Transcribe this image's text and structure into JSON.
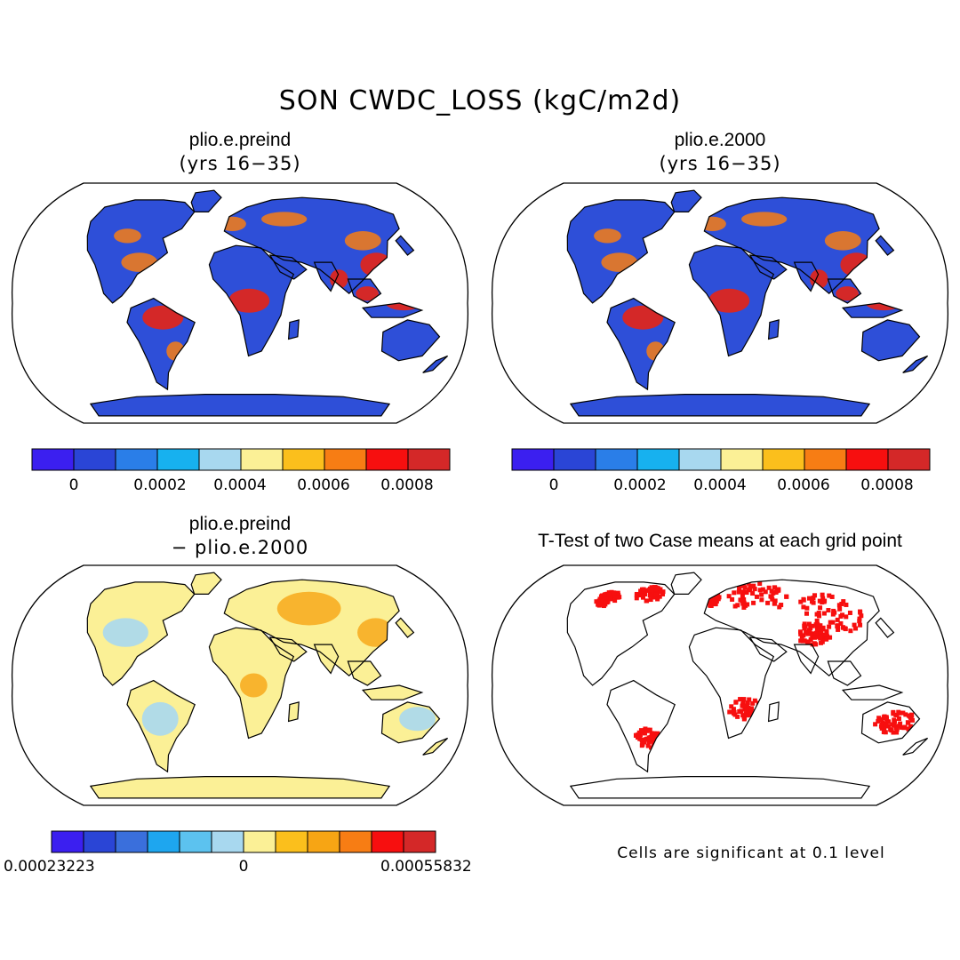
{
  "figure": {
    "title": "SON CWDC_LOSS (kgC/m2d)"
  },
  "panels": [
    {
      "title": "plio.e.preind",
      "subtitle": "(yrs 16−35)",
      "style": "field"
    },
    {
      "title": "plio.e.2000",
      "subtitle": "(yrs 16−35)",
      "style": "field"
    },
    {
      "title": "plio.e.preind",
      "subtitle": "− plio.e.2000",
      "style": "difference"
    },
    {
      "title": "T-Test of two Case means at each grid point",
      "subtitle": "",
      "style": "significance"
    }
  ],
  "colorbars": {
    "field": {
      "colors": [
        "#3b1ff0",
        "#2a45d6",
        "#2a7ee8",
        "#17b1ef",
        "#a8d8ef",
        "#fbf096",
        "#fbbf1c",
        "#f77d14",
        "#f70f0f",
        "#d42828"
      ],
      "tick_labels": [
        "0",
        "0.0002",
        "0.0004",
        "0.0006",
        "0.0008"
      ]
    },
    "difference": {
      "colors": [
        "#3b1ff0",
        "#2a45d6",
        "#3a6fdc",
        "#1ea6ef",
        "#5cc2ef",
        "#a8d8ef",
        "#fbf096",
        "#fbbf1c",
        "#f7a514",
        "#f77d14",
        "#f70f0f",
        "#d42828"
      ],
      "tick_labels": [
        "0.00023223",
        "0",
        "0.00055832"
      ]
    }
  },
  "significance_note": "Cells are significant at 0.1 level",
  "map_colors": {
    "ocean": "#ffffff",
    "coast": "#000000",
    "field_land": "#2e4fd8",
    "field_warm": "#f77d14",
    "field_hot": "#d42828",
    "diff_land": "#fbf096",
    "diff_cool": "#a8d8ef",
    "diff_warm": "#f7a514",
    "sig_dot": "#f70f0f"
  }
}
